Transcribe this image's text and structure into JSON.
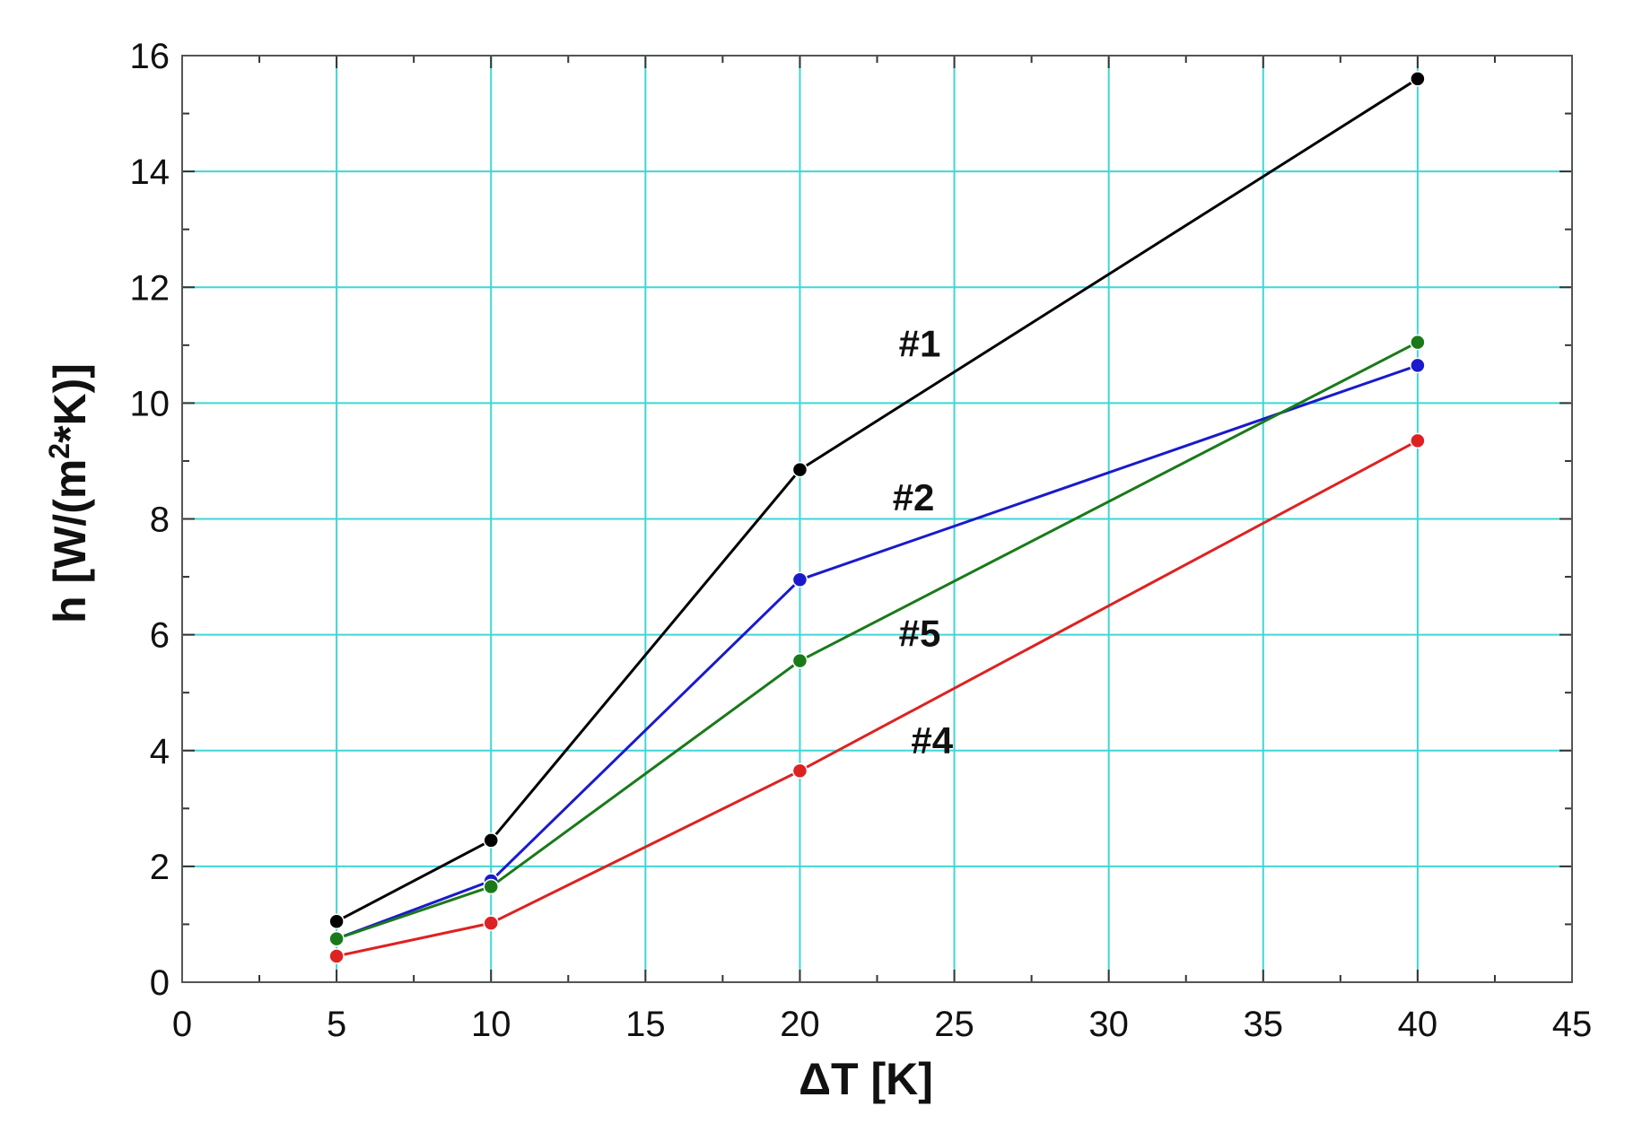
{
  "chart_data": {
    "type": "line",
    "title": "",
    "xlabel": "ΔT  [K]",
    "ylabel": "h  [W/(m",
    "ylabel_sup": "2",
    "ylabel_tail": "*K)]",
    "xlim": [
      0,
      45
    ],
    "ylim": [
      0,
      16
    ],
    "xticks": [
      0,
      5,
      10,
      15,
      20,
      25,
      30,
      35,
      40,
      45
    ],
    "yticks": [
      0,
      2,
      4,
      6,
      8,
      10,
      12,
      14,
      16
    ],
    "x_minor_step": 2.5,
    "y_minor_step": 1,
    "grid": true,
    "grid_color": "#3fd6d6",
    "x": [
      5,
      10,
      20,
      40
    ],
    "series": [
      {
        "name": "#1",
        "color": "#000000",
        "values": [
          1.05,
          2.45,
          8.85,
          15.6
        ],
        "label_at": [
          23.2,
          10.8
        ]
      },
      {
        "name": "#2",
        "color": "#1a1acc",
        "values": [
          0.75,
          1.75,
          6.95,
          10.65
        ],
        "label_at": [
          23.0,
          8.15
        ]
      },
      {
        "name": "#5",
        "color": "#1a7a1a",
        "values": [
          0.75,
          1.65,
          5.55,
          11.05
        ],
        "label_at": [
          23.2,
          5.8
        ]
      },
      {
        "name": "#4",
        "color": "#dd2222",
        "values": [
          0.45,
          1.02,
          3.65,
          9.35
        ],
        "label_at": [
          23.6,
          3.95
        ]
      }
    ]
  }
}
